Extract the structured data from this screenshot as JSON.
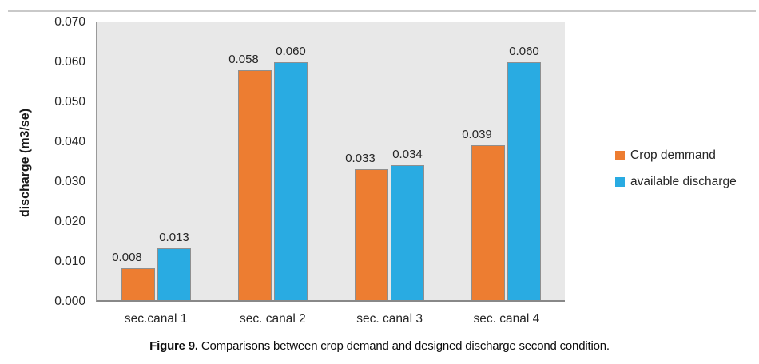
{
  "chart_data": {
    "type": "bar",
    "title": "",
    "categories": [
      "sec.canal 1",
      "sec. canal 2",
      "sec. canal 3",
      "sec. canal 4"
    ],
    "series": [
      {
        "name": "Crop demmand",
        "color": "#ED7D31",
        "values": [
          0.008,
          0.058,
          0.033,
          0.039
        ]
      },
      {
        "name": "available discharge",
        "color": "#29ABE2",
        "values": [
          0.013,
          0.06,
          0.034,
          0.06
        ]
      }
    ],
    "xlabel": "",
    "ylabel": "discharge (m3/se)",
    "ylim": [
      0,
      0.07
    ],
    "ytick_labels": [
      "0.000",
      "0.010",
      "0.020",
      "0.030",
      "0.040",
      "0.050",
      "0.060",
      "0.070"
    ],
    "grid": false,
    "legend_position": "right",
    "plot_bg": "#E8E8E8",
    "data_labels": true,
    "data_label_decimals": 3
  },
  "caption": {
    "prefix": "Figure 9.",
    "text": "Comparisons between crop demand and designed discharge second condition."
  }
}
